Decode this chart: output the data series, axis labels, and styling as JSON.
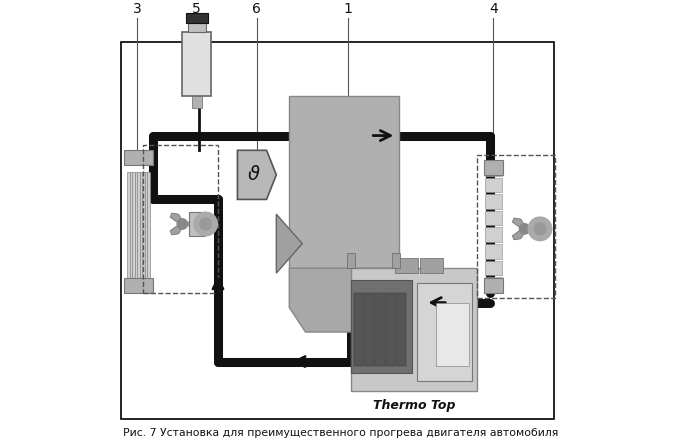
{
  "title": "Рис. 7 Установка для преимущественного прогрева двигателя автомобиля",
  "thermo_top_label": "Thermo Top",
  "bg_color": "#ffffff",
  "pipe_color": "#111111",
  "pipe_lw": 7,
  "gray_engine": "#a8a8a8",
  "gray_light": "#d0d0d0",
  "gray_rad": "#c0c0c0",
  "dashed_color": "#666666",
  "label_color": "#111111",
  "arrow_color": "#111111"
}
